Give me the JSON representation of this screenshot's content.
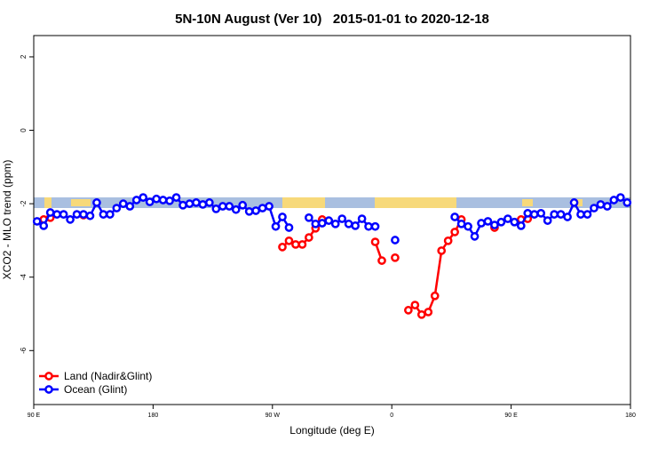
{
  "chart_data": {
    "type": "line",
    "title": "5N-10N August (Ver 10)   2015-01-01 to 2020-12-18",
    "x_label": "Longitude (deg E)",
    "y_label": "XCO2 - MLO trend (ppm)",
    "xlim": [
      90,
      540
    ],
    "xticks": [
      {
        "value": 90,
        "label": "90 E"
      },
      {
        "value": 180,
        "label": "180"
      },
      {
        "value": 270,
        "label": "90 W"
      },
      {
        "value": 360,
        "label": "0"
      },
      {
        "value": 450,
        "label": "90 E"
      },
      {
        "value": 540,
        "label": "180"
      }
    ],
    "ylim": [
      -7.47,
      2.58
    ],
    "yticks": [
      -6,
      -4,
      -2,
      0,
      2
    ],
    "legend": "bottom-left",
    "series": [
      {
        "name": "Land (Nadir&Glint)",
        "color": "#ff0000",
        "x": [
          97.5,
          102.5,
          112.5,
          127.5,
          200,
          277.5,
          282.5,
          287.5,
          292.5,
          297.5,
          302.5,
          307.5,
          330,
          347.5,
          352.5,
          357.5,
          362.5,
          367.5,
          372.5,
          377.5,
          382.5,
          387.5,
          392.5,
          397.5,
          402.5,
          407.5,
          412.5,
          425,
          437.5,
          447.5,
          457.5,
          462.5
        ],
        "values": [
          -2.43,
          -2.38,
          null,
          -2.31,
          null,
          -3.18,
          -3.01,
          -3.11,
          -3.11,
          -2.92,
          -2.67,
          -2.43,
          null,
          -3.04,
          -3.55,
          null,
          -3.47,
          null,
          -4.9,
          -4.76,
          -5.02,
          -4.95,
          -4.51,
          -3.28,
          -3.01,
          -2.77,
          -2.43,
          null,
          -2.65,
          null,
          -2.43,
          -2.41
        ]
      },
      {
        "name": "Ocean (Glint)",
        "color": "#0000ff",
        "x": [
          92.5,
          97.5,
          102.5,
          107.5,
          112.5,
          117.5,
          122.5,
          127.5,
          132.5,
          137.5,
          142.5,
          147.5,
          152.5,
          157.5,
          162.5,
          167.5,
          172.5,
          177.5,
          182.5,
          187.5,
          192.5,
          197.5,
          202.5,
          207.5,
          212.5,
          217.5,
          222.5,
          227.5,
          232.5,
          237.5,
          242.5,
          247.5,
          252.5,
          257.5,
          262.5,
          267.5,
          272.5,
          277.5,
          282.5,
          287.5,
          297.5,
          302.5,
          307.5,
          312.5,
          317.5,
          322.5,
          327.5,
          332.5,
          337.5,
          342.5,
          347.5,
          352.5,
          362.5,
          367.5,
          407.5,
          412.5,
          417.5,
          422.5,
          427.5,
          432.5,
          437.5,
          442.5,
          447.5,
          452.5,
          457.5,
          462.5,
          467.5,
          472.5,
          477.5,
          482.5,
          487.5,
          492.5,
          497.5,
          502.5,
          507.5,
          512.5,
          517.5,
          522.5,
          527.5,
          532.5,
          537.5
        ],
        "values": [
          -2.48,
          -2.6,
          -2.24,
          -2.29,
          -2.29,
          -2.43,
          -2.29,
          -2.29,
          -2.33,
          -1.97,
          -2.29,
          -2.29,
          -2.12,
          -2.0,
          -2.07,
          -1.9,
          -1.83,
          -1.95,
          -1.87,
          -1.9,
          -1.92,
          -1.83,
          -2.04,
          -2.0,
          -1.97,
          -2.02,
          -1.97,
          -2.14,
          -2.07,
          -2.07,
          -2.16,
          -2.04,
          -2.21,
          -2.19,
          -2.12,
          -2.07,
          -2.62,
          -2.36,
          -2.65,
          null,
          -2.38,
          -2.55,
          -2.53,
          -2.46,
          -2.55,
          -2.41,
          -2.55,
          -2.6,
          -2.41,
          -2.62,
          -2.62,
          null,
          -2.99,
          null,
          -2.36,
          -2.55,
          -2.62,
          -2.89,
          -2.53,
          -2.48,
          -2.58,
          -2.5,
          -2.41,
          -2.5,
          -2.6,
          -2.26,
          -2.29,
          -2.26,
          -2.46,
          -2.29,
          -2.29,
          -2.36,
          -1.97,
          -2.29,
          -2.29,
          -2.12,
          -2.02,
          -2.07,
          -1.9,
          -1.83,
          -1.97
        ]
      }
    ]
  }
}
